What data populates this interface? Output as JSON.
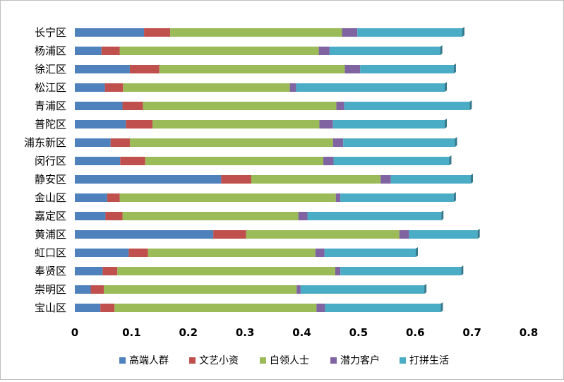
{
  "chart_data": {
    "type": "bar",
    "orientation": "horizontal",
    "stacked": true,
    "categories": [
      "长宁区",
      "杨浦区",
      "徐汇区",
      "松江区",
      "青浦区",
      "普陀区",
      "浦东新区",
      "闵行区",
      "静安区",
      "金山区",
      "嘉定区",
      "黄浦区",
      "虹口区",
      "奉贤区",
      "崇明区",
      "宝山区"
    ],
    "series": [
      {
        "name": "高端人群",
        "color": "#4f81bd",
        "values": [
          0.122,
          0.047,
          0.097,
          0.053,
          0.084,
          0.09,
          0.063,
          0.08,
          0.258,
          0.057,
          0.054,
          0.244,
          0.095,
          0.049,
          0.028,
          0.045
        ]
      },
      {
        "name": "文艺小资",
        "color": "#c0504d",
        "values": [
          0.046,
          0.032,
          0.052,
          0.032,
          0.036,
          0.047,
          0.034,
          0.044,
          0.053,
          0.022,
          0.03,
          0.058,
          0.034,
          0.026,
          0.023,
          0.025
        ]
      },
      {
        "name": "白领人士",
        "color": "#9bbb59",
        "values": [
          0.303,
          0.351,
          0.327,
          0.294,
          0.341,
          0.294,
          0.358,
          0.314,
          0.228,
          0.381,
          0.31,
          0.27,
          0.295,
          0.384,
          0.34,
          0.356
        ]
      },
      {
        "name": "潜力客户",
        "color": "#8064a2",
        "values": [
          0.027,
          0.019,
          0.027,
          0.011,
          0.014,
          0.024,
          0.018,
          0.018,
          0.018,
          0.008,
          0.016,
          0.017,
          0.016,
          0.009,
          0.007,
          0.015
        ]
      },
      {
        "name": "打拼生活",
        "color": "#4bacc6",
        "values": [
          0.185,
          0.195,
          0.165,
          0.262,
          0.221,
          0.197,
          0.197,
          0.204,
          0.141,
          0.2,
          0.236,
          0.121,
          0.161,
          0.213,
          0.218,
          0.204
        ]
      }
    ],
    "xlim": [
      0,
      0.8
    ],
    "xticks": [
      "0",
      "0.1",
      "0.2",
      "0.3",
      "0.4",
      "0.5",
      "0.6",
      "0.7",
      "0.8"
    ],
    "legend_position": "bottom",
    "grid": false
  }
}
